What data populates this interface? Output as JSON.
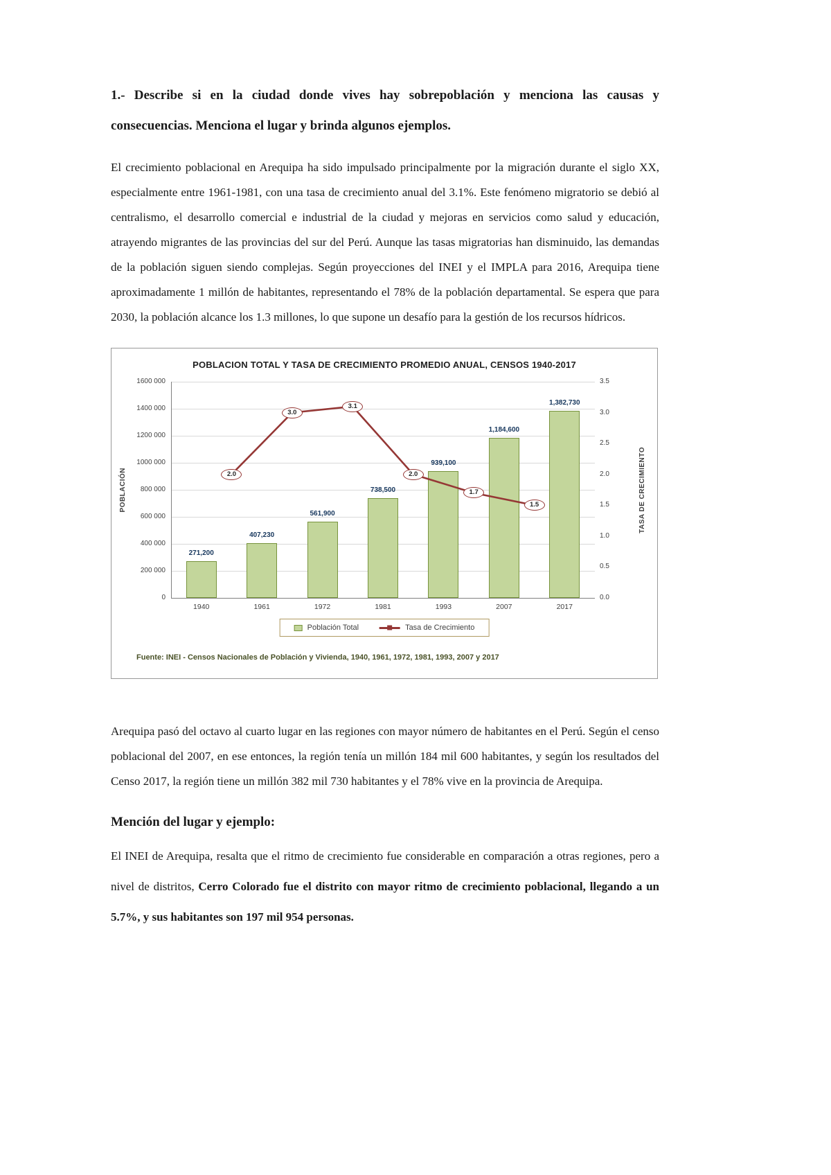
{
  "document": {
    "question_title": "1.- Describe si en la ciudad donde vives hay sobrepoblación y menciona las causas y consecuencias. Menciona el lugar y brinda algunos ejemplos.",
    "paragraph_intro": "El crecimiento poblacional en Arequipa ha sido impulsado principalmente por la migración durante el siglo XX, especialmente entre 1961-1981, con una tasa de crecimiento anual del 3.1%. Este fenómeno migratorio se debió al centralismo, el desarrollo comercial e industrial de la ciudad y mejoras en servicios como salud y educación, atrayendo migrantes de las provincias del sur del Perú. Aunque las tasas migratorias han disminuido, las demandas de la población siguen siendo complejas. Según proyecciones del INEI y el IMPLA para 2016, Arequipa tiene aproximadamente 1 millón de habitantes, representando el 78% de la población departamental. Se espera que para 2030, la población alcance los 1.3 millones, lo que supone un desafío para la gestión de los recursos hídricos.",
    "paragraph_census": "Arequipa pasó del octavo al cuarto lugar en las regiones con mayor número de habitantes en el Perú. Según el censo poblacional del 2007, en ese entonces, la región tenía un millón 184 mil 600 habitantes, y según los resultados del Censo 2017, la región tiene un millón 382 mil 730 habitantes y el 78% vive en la provincia de Arequipa.",
    "section_heading": "Mención del lugar y ejemplo:",
    "mention_normal": "El INEI de Arequipa, resalta que el ritmo de crecimiento fue considerable en comparación a otras regiones, pero a nivel de distritos, ",
    "mention_bold": "Cerro Colorado fue el distrito con mayor ritmo de crecimiento poblacional, llegando a un 5.7%, y sus habitantes son 197 mil 954 personas."
  },
  "chart_data": {
    "type": "bar+line",
    "title": "POBLACION TOTAL Y TASA DE CRECIMIENTO PROMEDIO ANUAL, CENSOS 1940-2017",
    "categories": [
      "1940",
      "1961",
      "1972",
      "1981",
      "1993",
      "2007",
      "2017"
    ],
    "series": [
      {
        "name": "Población Total",
        "type": "bar",
        "values": [
          271200,
          407230,
          561900,
          738500,
          939100,
          1184600,
          1382730
        ],
        "labels": [
          "271,200",
          "407,230",
          "561,900",
          "738,500",
          "939,100",
          "1,184,600",
          "1,382,730"
        ]
      },
      {
        "name": "Tasa de Crecimiento",
        "type": "line",
        "values": [
          2.0,
          3.0,
          3.1,
          2.0,
          1.7,
          1.5
        ],
        "labels": [
          "2.0",
          "3.0",
          "3.1",
          "2.0",
          "1.7",
          "1.5"
        ],
        "color": "#953735"
      }
    ],
    "ylabel_left": "POBLACIÓN",
    "ylabel_right": "TASA DE CRECIMIENTO",
    "yticks_left": [
      "1600 000",
      "1400 000",
      "1200 000",
      "1000 000",
      "800 000",
      "600 000",
      "400 000",
      "200 000",
      "0"
    ],
    "yticks_right": [
      "3.5",
      "3.0",
      "2.5",
      "2.0",
      "1.5",
      "1.0",
      "0.5",
      "0.0"
    ],
    "ylim_left": [
      0,
      1600000
    ],
    "ylim_right": [
      0,
      3.5
    ],
    "grid": true,
    "legend_position": "bottom",
    "legend": [
      "Población Total",
      "Tasa de Crecimiento"
    ],
    "source": "Fuente: INEI - Censos Nacionales de Población y Vivienda, 1940, 1961, 1972, 1981, 1993, 2007 y 2017",
    "colors": {
      "bar_fill": "#c3d69b",
      "bar_border": "#77933c",
      "line": "#953735",
      "bar_label": "#17375d",
      "legend_border": "#b09a62",
      "source_text": "#4a5228"
    }
  }
}
